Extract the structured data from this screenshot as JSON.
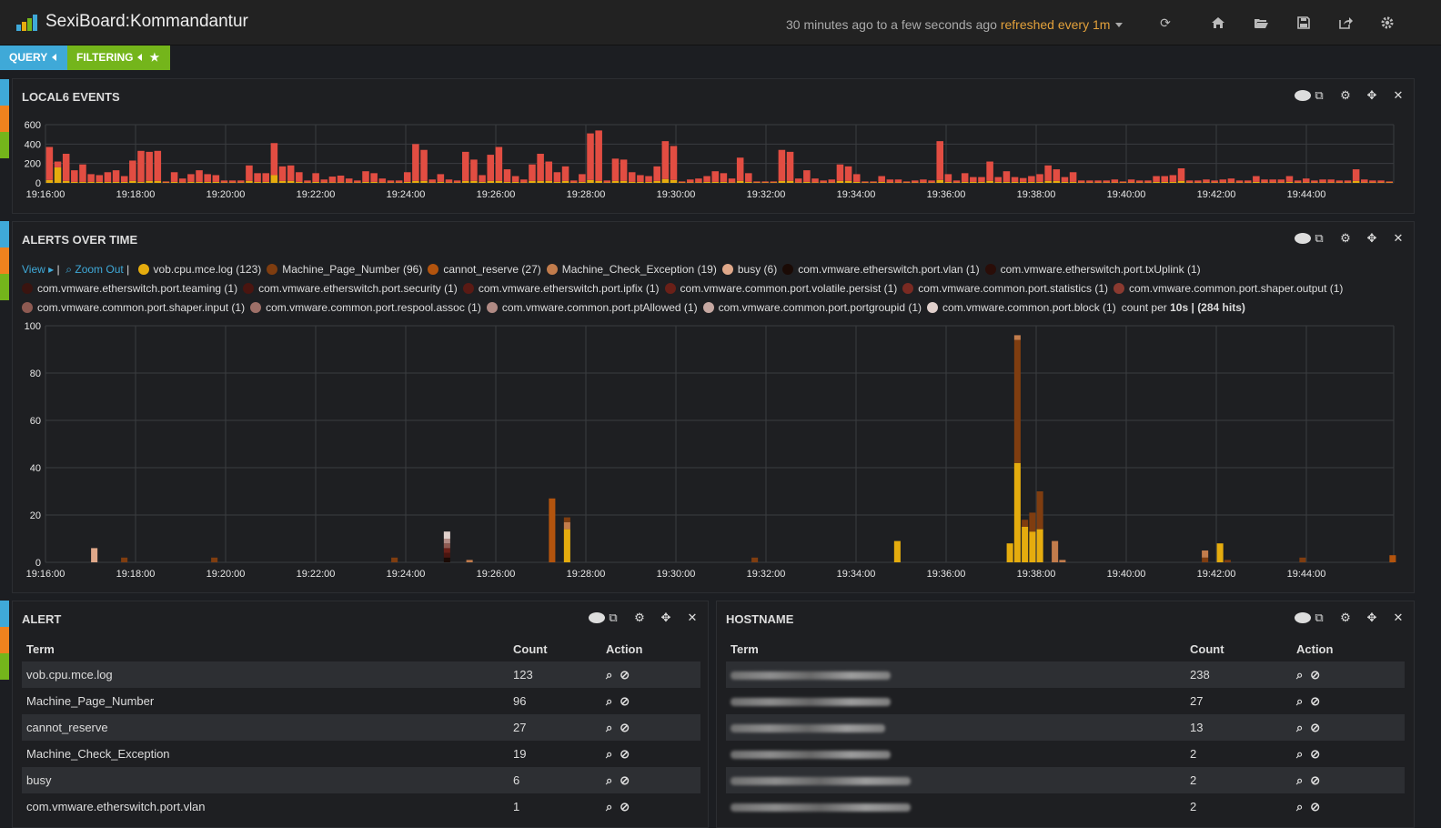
{
  "header": {
    "title": "SexiBoard:Kommandantur",
    "time_range": "30 minutes ago to a few seconds ago",
    "refresh": "refreshed every 1m"
  },
  "pills": {
    "query": "QUERY",
    "filtering": "FILTERING"
  },
  "colors": {
    "accent_blue": "#3fa9d8",
    "accent_green": "#74b51b",
    "accent_orange": "#f0821e",
    "bar_red": "#e24d42",
    "bar_yellow": "#e5ac0e"
  },
  "panels": {
    "events": {
      "title": "LOCAL6 EVENTS"
    },
    "alerts_time": {
      "title": "ALERTS OVER TIME",
      "view": "View",
      "zoom_out": "Zoom Out",
      "count_prefix": "count per",
      "count_interval": "10s",
      "count_hits": "(284 hits)"
    },
    "alert": {
      "title": "ALERT"
    },
    "hostname": {
      "title": "HOSTNAME"
    }
  },
  "legend": [
    {
      "label": "vob.cpu.mce.log (123)",
      "color": "#e5ac0e"
    },
    {
      "label": "Machine_Page_Number (96)",
      "color": "#7f3d10"
    },
    {
      "label": "cannot_reserve (27)",
      "color": "#b3540e"
    },
    {
      "label": "Machine_Check_Exception (19)",
      "color": "#c27c4c"
    },
    {
      "label": "busy (6)",
      "color": "#e0a88a"
    },
    {
      "label": "com.vmware.etherswitch.port.vlan (1)",
      "color": "#1a0a05"
    },
    {
      "label": "com.vmware.etherswitch.port.txUplink (1)",
      "color": "#2a0d08"
    },
    {
      "label": "com.vmware.etherswitch.port.teaming (1)",
      "color": "#3a1410"
    },
    {
      "label": "com.vmware.etherswitch.port.security (1)",
      "color": "#4a1510"
    },
    {
      "label": "com.vmware.etherswitch.port.ipfix (1)",
      "color": "#5a1a14"
    },
    {
      "label": "com.vmware.common.port.volatile.persist (1)",
      "color": "#6a2018"
    },
    {
      "label": "com.vmware.common.port.statistics (1)",
      "color": "#7a2a22"
    },
    {
      "label": "com.vmware.common.port.shaper.output (1)",
      "color": "#8a3a30"
    },
    {
      "label": "com.vmware.common.port.shaper.input (1)",
      "color": "#8e5a52"
    },
    {
      "label": "com.vmware.common.port.respool.assoc (1)",
      "color": "#9e7068"
    },
    {
      "label": "com.vmware.common.port.ptAllowed (1)",
      "color": "#b08a84"
    },
    {
      "label": "com.vmware.common.port.portgroupid (1)",
      "color": "#c6a8a2"
    },
    {
      "label": "com.vmware.common.port.block (1)",
      "color": "#e0d0cc"
    }
  ],
  "alert_table": {
    "headers": [
      "Term",
      "Count",
      "Action"
    ],
    "rows": [
      {
        "term": "vob.cpu.mce.log",
        "count": "123"
      },
      {
        "term": "Machine_Page_Number",
        "count": "96"
      },
      {
        "term": "cannot_reserve",
        "count": "27"
      },
      {
        "term": "Machine_Check_Exception",
        "count": "19"
      },
      {
        "term": "busy",
        "count": "6"
      },
      {
        "term": "com.vmware.etherswitch.port.vlan",
        "count": "1"
      }
    ]
  },
  "hostname_table": {
    "headers": [
      "Term",
      "Count",
      "Action"
    ],
    "rows": [
      {
        "count": "238"
      },
      {
        "count": "27"
      },
      {
        "count": "13"
      },
      {
        "count": "2"
      },
      {
        "count": "2"
      },
      {
        "count": "2"
      }
    ]
  },
  "chart_data": [
    {
      "type": "bar",
      "title": "LOCAL6 EVENTS",
      "x_ticks": [
        "19:16:00",
        "19:18:00",
        "19:20:00",
        "19:22:00",
        "19:24:00",
        "19:26:00",
        "19:28:00",
        "19:30:00",
        "19:32:00",
        "19:34:00",
        "19:36:00",
        "19:38:00",
        "19:40:00",
        "19:42:00",
        "19:44:00"
      ],
      "y_ticks": [
        "0",
        "200",
        "400",
        "600"
      ],
      "ylim": [
        0,
        600
      ],
      "stacked": true,
      "series": [
        {
          "color": "#e24d42",
          "values": [
            340,
            60,
            280,
            120,
            180,
            80,
            70,
            100,
            120,
            60,
            210,
            320,
            300,
            310,
            10,
            100,
            40,
            80,
            120,
            80,
            70,
            20,
            20,
            20,
            160,
            90,
            90,
            330,
            150,
            160,
            100,
            20,
            90,
            30,
            60,
            70,
            40,
            20,
            110,
            90,
            40,
            20,
            20,
            100,
            380,
            320,
            30,
            80,
            30,
            20,
            300,
            220,
            70,
            270,
            350,
            130,
            60,
            30,
            170,
            280,
            200,
            100,
            150,
            20,
            80,
            480,
            520,
            20,
            230,
            220,
            100,
            70,
            60,
            150,
            390,
            350,
            10,
            30,
            40,
            60,
            110,
            90,
            40,
            240,
            90,
            10,
            10,
            10,
            320,
            300,
            40,
            120,
            40,
            20,
            30,
            170,
            150,
            80,
            10,
            10,
            60,
            30,
            30,
            10,
            20,
            30,
            20,
            400,
            80,
            20,
            90,
            50,
            50,
            200,
            50,
            110,
            50,
            40,
            60,
            80,
            160,
            120,
            50,
            100,
            20,
            20,
            20,
            20,
            30,
            10,
            30,
            20,
            20,
            60,
            60,
            70,
            130,
            20,
            20,
            30,
            20,
            30,
            40,
            20,
            20,
            60,
            30,
            30,
            30,
            60,
            20,
            40,
            20,
            30,
            30,
            20,
            20,
            120,
            30,
            20,
            20,
            10
          ]
        },
        {
          "color": "#e5ac0e",
          "values": [
            30,
            160,
            20,
            10,
            10,
            10,
            10,
            10,
            10,
            10,
            20,
            10,
            20,
            20,
            5,
            10,
            5,
            10,
            10,
            10,
            10,
            5,
            5,
            5,
            20,
            10,
            10,
            80,
            20,
            20,
            10,
            5,
            10,
            5,
            5,
            5,
            5,
            5,
            10,
            10,
            5,
            5,
            5,
            10,
            20,
            20,
            5,
            10,
            5,
            5,
            20,
            20,
            10,
            20,
            20,
            10,
            10,
            5,
            20,
            20,
            20,
            10,
            20,
            5,
            10,
            30,
            20,
            5,
            20,
            20,
            10,
            10,
            10,
            20,
            40,
            30,
            5,
            5,
            5,
            10,
            10,
            10,
            5,
            20,
            10,
            5,
            5,
            5,
            20,
            20,
            5,
            10,
            5,
            5,
            5,
            20,
            20,
            10,
            5,
            5,
            10,
            5,
            5,
            5,
            5,
            5,
            5,
            30,
            10,
            5,
            10,
            10,
            10,
            20,
            10,
            10,
            10,
            10,
            10,
            10,
            20,
            20,
            10,
            10,
            5,
            5,
            5,
            5,
            5,
            5,
            5,
            5,
            5,
            10,
            10,
            10,
            20,
            5,
            5,
            5,
            5,
            5,
            5,
            5,
            5,
            10,
            5,
            5,
            5,
            10,
            5,
            5,
            5,
            5,
            5,
            5,
            5,
            20,
            5,
            5,
            5,
            5
          ]
        }
      ]
    },
    {
      "type": "bar",
      "title": "ALERTS OVER TIME",
      "x_ticks": [
        "19:16:00",
        "19:18:00",
        "19:20:00",
        "19:22:00",
        "19:24:00",
        "19:26:00",
        "19:28:00",
        "19:30:00",
        "19:32:00",
        "19:34:00",
        "19:36:00",
        "19:38:00",
        "19:40:00",
        "19:42:00",
        "19:44:00"
      ],
      "y_ticks": [
        "0",
        "20",
        "40",
        "60",
        "80",
        "100"
      ],
      "ylim": [
        0,
        100
      ],
      "stacked": true,
      "bars": [
        {
          "x": "19:17:05",
          "segments": [
            {
              "color": "#e0a88a",
              "value": 6
            }
          ]
        },
        {
          "x": "19:17:45",
          "segments": [
            {
              "color": "#7f3d10",
              "value": 2
            }
          ]
        },
        {
          "x": "19:19:45",
          "segments": [
            {
              "color": "#7f3d10",
              "value": 2
            }
          ]
        },
        {
          "x": "19:23:45",
          "segments": [
            {
              "color": "#7f3d10",
              "value": 2
            }
          ]
        },
        {
          "x": "19:24:55",
          "segments": [
            {
              "color": "#1a0a05",
              "value": 2
            },
            {
              "color": "#4a1510",
              "value": 2
            },
            {
              "color": "#6a2018",
              "value": 2
            },
            {
              "color": "#8e5a52",
              "value": 2
            },
            {
              "color": "#b08a84",
              "value": 2
            },
            {
              "color": "#e0d0cc",
              "value": 3
            }
          ]
        },
        {
          "x": "19:25:25",
          "segments": [
            {
              "color": "#c27c4c",
              "value": 1
            }
          ]
        },
        {
          "x": "19:27:15",
          "segments": [
            {
              "color": "#b3540e",
              "value": 27
            }
          ]
        },
        {
          "x": "19:27:35",
          "segments": [
            {
              "color": "#e5ac0e",
              "value": 14
            },
            {
              "color": "#c27c4c",
              "value": 3
            },
            {
              "color": "#7f3d10",
              "value": 2
            }
          ]
        },
        {
          "x": "19:31:45",
          "segments": [
            {
              "color": "#7f3d10",
              "value": 2
            }
          ]
        },
        {
          "x": "19:34:55",
          "segments": [
            {
              "color": "#e5ac0e",
              "value": 9
            }
          ]
        },
        {
          "x": "19:37:25",
          "segments": [
            {
              "color": "#e5ac0e",
              "value": 8
            }
          ]
        },
        {
          "x": "19:37:35",
          "segments": [
            {
              "color": "#e5ac0e",
              "value": 42
            },
            {
              "color": "#7f3d10",
              "value": 52
            },
            {
              "color": "#c27c4c",
              "value": 2
            }
          ]
        },
        {
          "x": "19:37:45",
          "segments": [
            {
              "color": "#e5ac0e",
              "value": 15
            },
            {
              "color": "#7f3d10",
              "value": 3
            }
          ]
        },
        {
          "x": "19:37:55",
          "segments": [
            {
              "color": "#e5ac0e",
              "value": 13
            },
            {
              "color": "#7f3d10",
              "value": 8
            }
          ]
        },
        {
          "x": "19:38:05",
          "segments": [
            {
              "color": "#e5ac0e",
              "value": 14
            },
            {
              "color": "#7f3d10",
              "value": 16
            }
          ]
        },
        {
          "x": "19:38:25",
          "segments": [
            {
              "color": "#c27c4c",
              "value": 9
            }
          ]
        },
        {
          "x": "19:38:35",
          "segments": [
            {
              "color": "#c27c4c",
              "value": 1
            }
          ]
        },
        {
          "x": "19:41:45",
          "segments": [
            {
              "color": "#7f3d10",
              "value": 2
            },
            {
              "color": "#c27c4c",
              "value": 3
            }
          ]
        },
        {
          "x": "19:42:05",
          "segments": [
            {
              "color": "#e5ac0e",
              "value": 8
            }
          ]
        },
        {
          "x": "19:42:15",
          "segments": [
            {
              "color": "#7f3d10",
              "value": 1
            }
          ]
        },
        {
          "x": "19:43:55",
          "segments": [
            {
              "color": "#7f3d10",
              "value": 2
            }
          ]
        },
        {
          "x": "19:45:55",
          "segments": [
            {
              "color": "#b3540e",
              "value": 3
            }
          ]
        }
      ]
    }
  ]
}
